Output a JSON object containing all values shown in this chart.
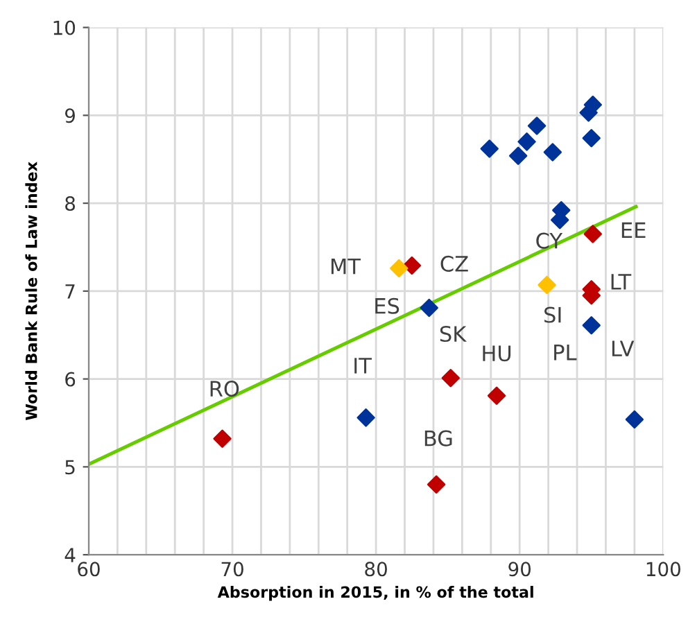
{
  "chart_data": {
    "type": "scatter",
    "xlabel": "Absorption in 2015, in % of the total",
    "ylabel": "World Bank Rule of Law index",
    "xlim": [
      60,
      100
    ],
    "ylim": [
      4,
      10
    ],
    "xticks": [
      60,
      {
        "value": 62,
        "label": null
      },
      {
        "value": 64,
        "label": null
      },
      {
        "value": 66,
        "label": null
      },
      {
        "value": 68,
        "label": null
      },
      70,
      {
        "value": 72,
        "label": null
      },
      {
        "value": 74,
        "label": null
      },
      {
        "value": 76,
        "label": null
      },
      {
        "value": 78,
        "label": null
      },
      80,
      {
        "value": 82,
        "label": null
      },
      {
        "value": 84,
        "label": null
      },
      {
        "value": 86,
        "label": null
      },
      {
        "value": 88,
        "label": null
      },
      90,
      {
        "value": 92,
        "label": null
      },
      {
        "value": 94,
        "label": null
      },
      {
        "value": 96,
        "label": null
      },
      {
        "value": 98,
        "label": null
      },
      100
    ],
    "yticks": [
      4,
      5,
      6,
      7,
      8,
      9,
      10
    ],
    "grid": true,
    "legend": false,
    "marker": "diamond",
    "series": [
      {
        "color": "#003399",
        "x": [
          87.9,
          89.9,
          90.5,
          91.2,
          92.3,
          94.8,
          95.1,
          95.0,
          92.9,
          92.8,
          83.7,
          79.3,
          98.0,
          95.0
        ],
        "values": [
          8.62,
          8.54,
          8.7,
          8.88,
          8.58,
          9.03,
          9.12,
          8.74,
          7.92,
          7.81,
          6.81,
          5.56,
          5.54,
          6.61
        ]
      },
      {
        "color": "#c00000",
        "x": [
          82.5,
          95.1,
          95.0,
          95.0,
          85.2,
          88.4,
          69.3,
          84.2
        ],
        "values": [
          7.29,
          7.65,
          7.02,
          6.95,
          6.01,
          5.81,
          5.32,
          4.8
        ]
      },
      {
        "color": "#ffc000",
        "x": [
          81.6,
          91.9
        ],
        "values": [
          7.26,
          7.07
        ]
      },
      {
        "type": "line",
        "marker": "none",
        "color": "#66cc00",
        "x": [
          60,
          98.1
        ],
        "values": [
          5.03,
          7.96
        ]
      }
    ],
    "annotations": [
      {
        "text": "RO",
        "x": 69.3,
        "y": 5.32
      },
      {
        "text": "IT",
        "x": 79.3,
        "y": 5.56
      },
      {
        "text": "ES",
        "x": 83.7,
        "y": 6.81
      },
      {
        "text": "MT",
        "x": 81.6,
        "y": 7.26
      },
      {
        "text": "CZ",
        "x": 82.5,
        "y": 7.29
      },
      {
        "text": "BG",
        "x": 84.2,
        "y": 4.8
      },
      {
        "text": "SK",
        "x": 85.2,
        "y": 6.01
      },
      {
        "text": "HU",
        "x": 88.4,
        "y": 5.81
      },
      {
        "text": "CY",
        "x": 91.9,
        "y": 7.07
      },
      {
        "text": "EE",
        "x": 95.1,
        "y": 7.65
      },
      {
        "text": "LT",
        "x": 95.0,
        "y": 7.02
      },
      {
        "text": "SI",
        "x": 95.0,
        "y": 6.95
      },
      {
        "text": "PL",
        "x": 95.0,
        "y": 6.61
      },
      {
        "text": "LV",
        "x": 95.0,
        "y": 6.61
      }
    ]
  }
}
